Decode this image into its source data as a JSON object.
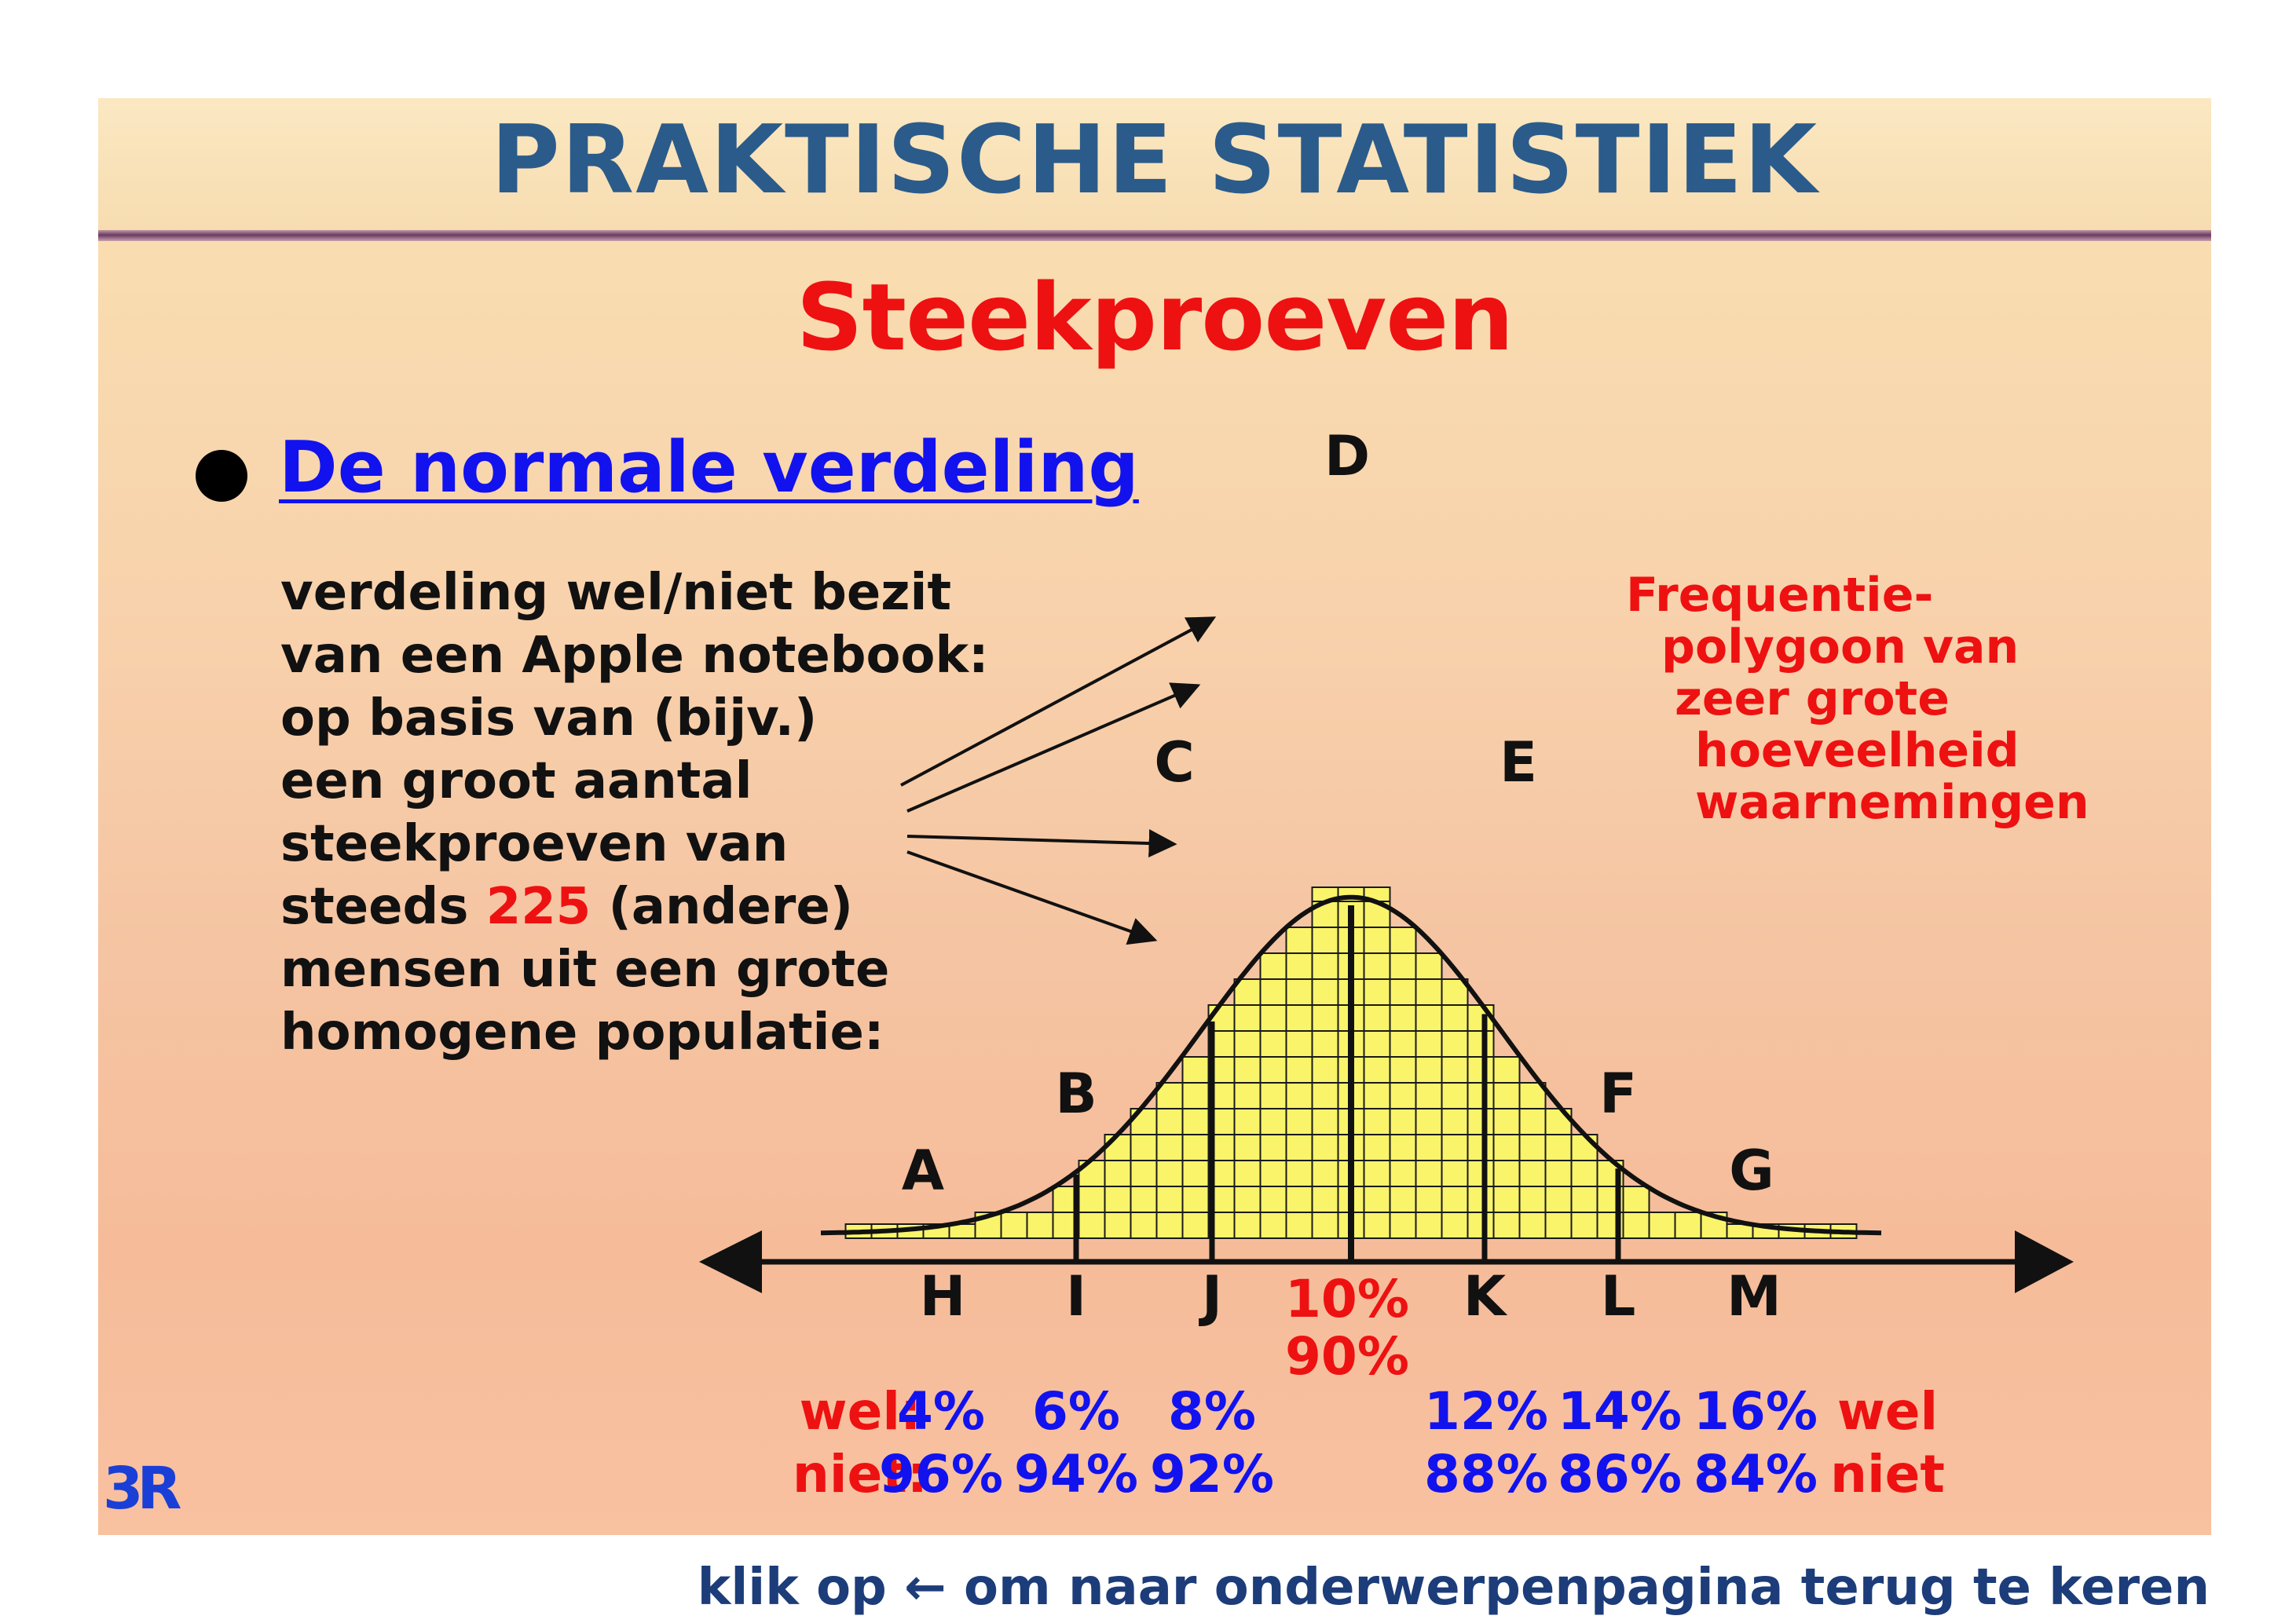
{
  "slide": {
    "title": "PRAKTISCHE STATISTIEK",
    "section_title": "Steekproeven",
    "topic_heading": "De normale verdeling",
    "description": {
      "lines": [
        "verdeling wel/niet bezit",
        "van een Apple notebook:",
        "op basis van (bijv.)",
        "een groot aantal",
        "steekproeven van"
      ],
      "line6_prefix": "steeds ",
      "sample_size": "225",
      "line6_suffix": " (andere)",
      "line7": "mensen uit een grote",
      "line8": "homogene populatie:"
    },
    "annotation": {
      "lines": [
        "Frequentie-",
        "polygoon van",
        "zeer grote",
        "hoeveelheid",
        "waarnemingen"
      ]
    },
    "logo_text": "3R"
  },
  "diagram": {
    "curve_points": [
      "A",
      "B",
      "C",
      "D",
      "E",
      "F",
      "G"
    ],
    "axis_ticks": [
      "H",
      "I",
      "J",
      "K",
      "L",
      "M"
    ],
    "center_values": [
      "10%",
      "90%"
    ],
    "row_labels": {
      "wel": "wel:",
      "niet": "niet:",
      "wel_right": "wel",
      "niet_right": "niet"
    },
    "wel_percentages": [
      "4%",
      "6%",
      "8%",
      "12%",
      "14%",
      "16%"
    ],
    "niet_percentages": [
      "96%",
      "94%",
      "92%",
      "88%",
      "86%",
      "84%"
    ],
    "colors": {
      "histogram_fill": "#f9f46a",
      "grid_line": "#1a1a1a",
      "text_blue": "#1212ee",
      "text_red": "#ee1111"
    }
  },
  "footer": {
    "prefix": "klik op ",
    "arrow_icon": "left-arrow-icon",
    "suffix": " om naar onderwerpenpagina terug te keren"
  }
}
